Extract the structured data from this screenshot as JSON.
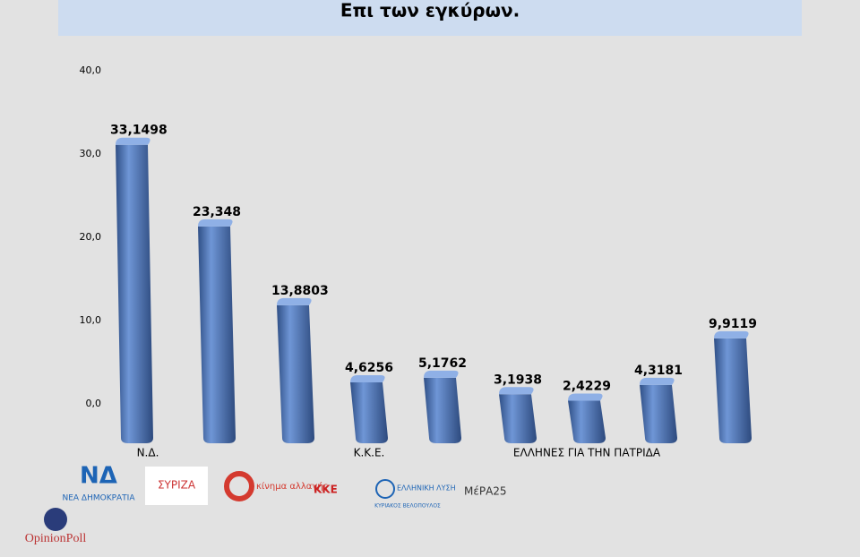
{
  "chart_data": {
    "type": "bar",
    "title": "Επι των εγκύρων.",
    "categories": [
      "Ν.Δ.",
      null,
      null,
      "Κ.Κ.Ε.",
      null,
      null,
      "ΕΛΛΗΝΕΣ ΓΙΑ ΤΗΝ ΠΑΤΡΙΔΑ",
      null,
      null
    ],
    "values": [
      33.1498,
      23.348,
      13.8803,
      4.6256,
      5.1762,
      3.1938,
      2.4229,
      4.3181,
      9.9119
    ],
    "value_labels": [
      "33,1498",
      "23,348",
      "13,8803",
      "4,6256",
      "5,1762",
      "3,1938",
      "2,4229",
      "4,3181",
      "9,9119"
    ],
    "color": "#5b82c4",
    "ylim": [
      0,
      40
    ],
    "yticks": [
      {
        "value": 0,
        "label": "0,0"
      },
      {
        "value": 10,
        "label": "10,0"
      },
      {
        "value": 20,
        "label": "20,0"
      },
      {
        "value": 30,
        "label": "30,0"
      },
      {
        "value": 40,
        "label": "40,0"
      }
    ]
  },
  "logos": {
    "nd": "ΝΕΑ ΔΗΜΟΚΡΑΤΙΑ",
    "syriza": "ΣΥΡΙΖΑ",
    "kinal": "κίνημα αλλαγής",
    "kke": "ΚΚΕ",
    "el_lysi": "ΕΛΛΗΝΙΚΗ ΛΥΣΗ",
    "el_lysi_sub": "ΚΥΡΙΑΚΟΣ ΒΕΛΟΠΟΥΛΟΣ",
    "mera25": "ΜέΡΑ25",
    "brand": "OpinionPoll"
  }
}
